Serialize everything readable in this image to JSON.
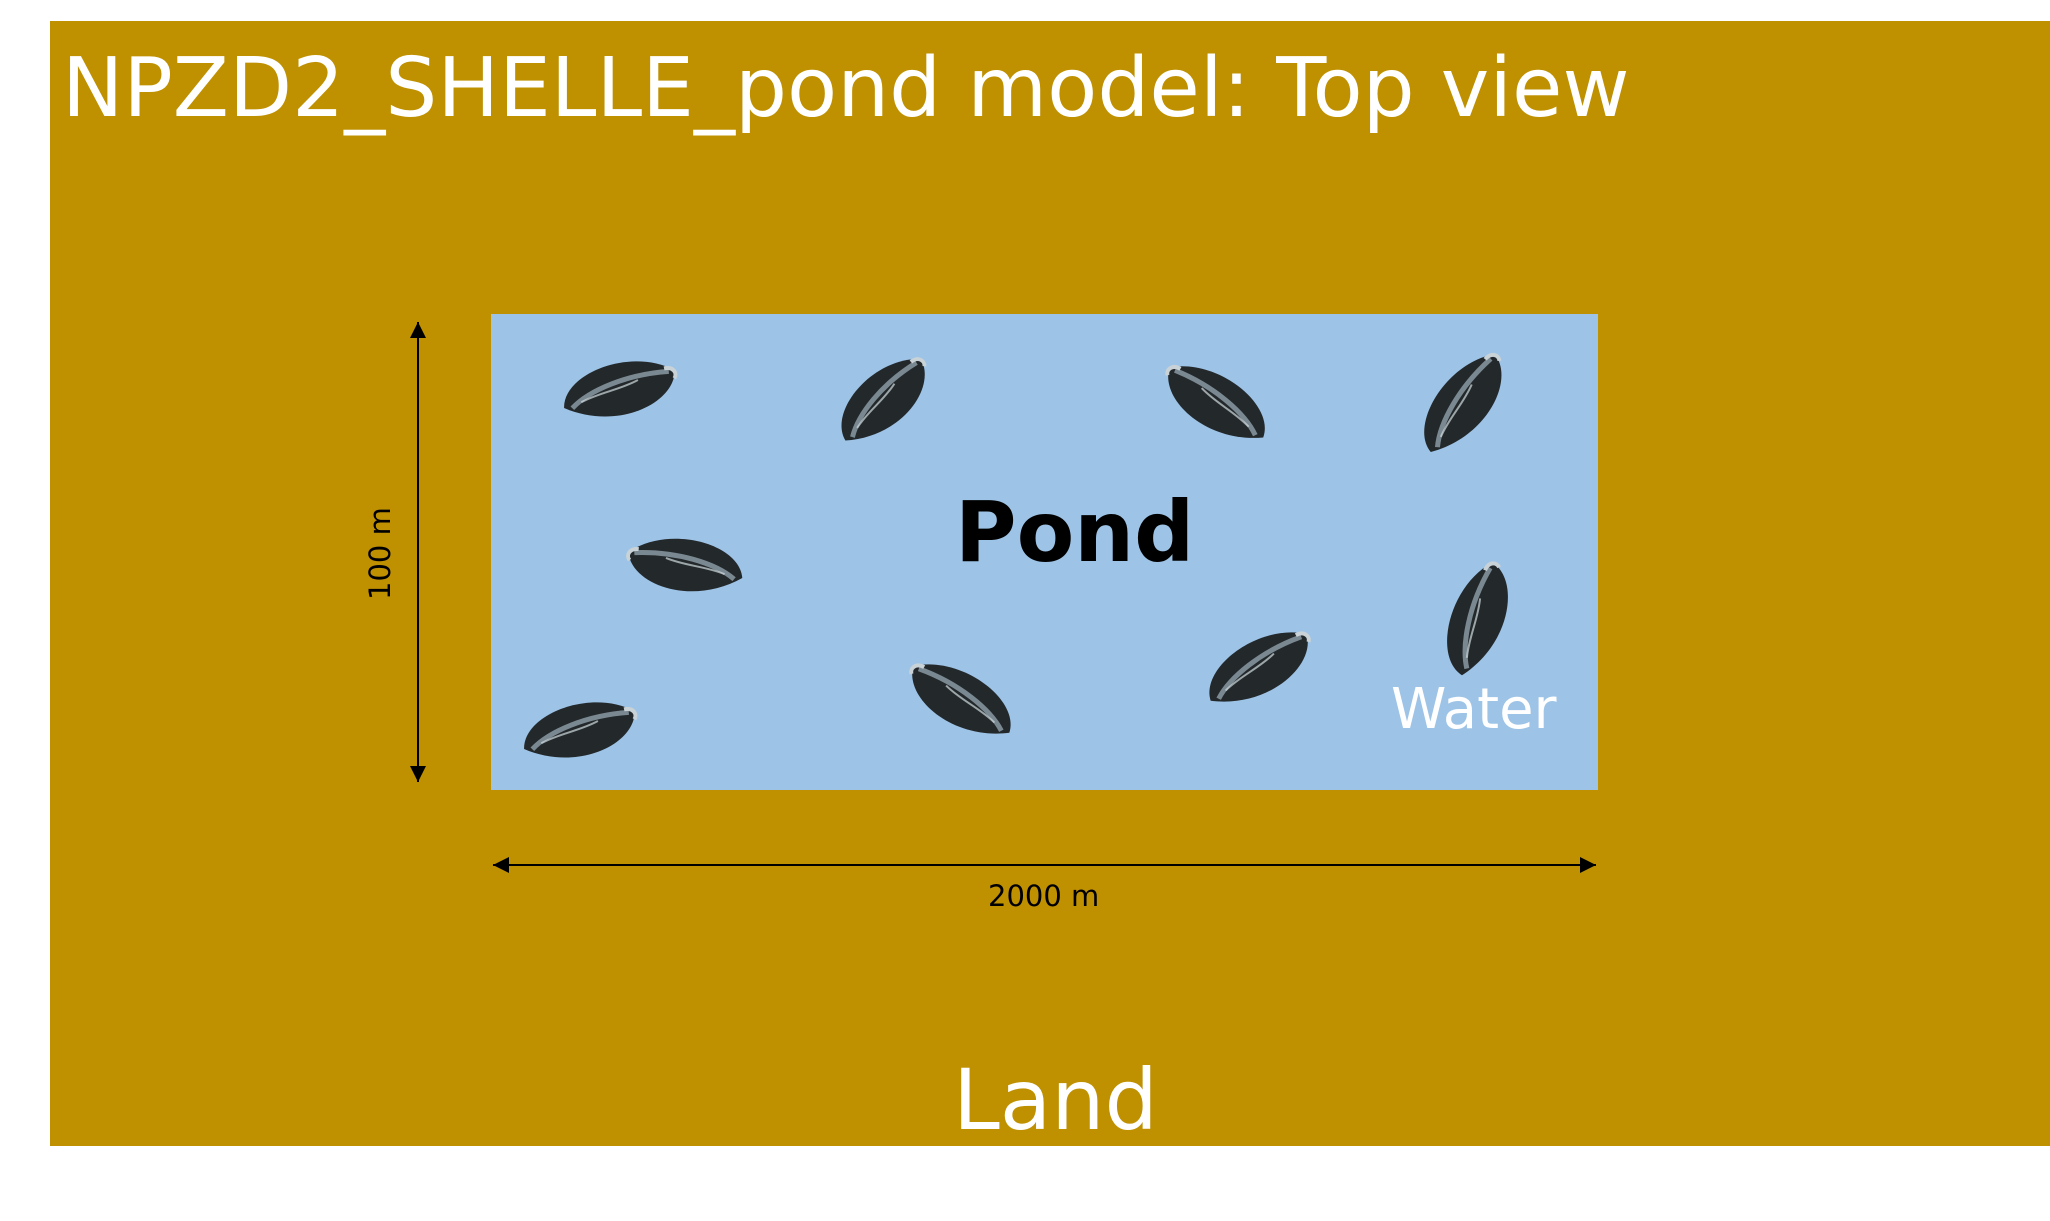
{
  "title": "NPZD2_SHELLE_pond model: Top view",
  "labels": {
    "pond": "Pond",
    "water": "Water",
    "land": "Land",
    "width": "2000 m",
    "height": "100 m"
  },
  "colors": {
    "land": "#BF9000",
    "water": "#9DC3E6",
    "mussel": "#22272a",
    "arrow": "#000000"
  },
  "mussels": [
    {
      "name": "mussel-1"
    },
    {
      "name": "mussel-2"
    },
    {
      "name": "mussel-3"
    },
    {
      "name": "mussel-4"
    },
    {
      "name": "mussel-5"
    },
    {
      "name": "mussel-6"
    },
    {
      "name": "mussel-7"
    },
    {
      "name": "mussel-8"
    },
    {
      "name": "mussel-9"
    }
  ]
}
